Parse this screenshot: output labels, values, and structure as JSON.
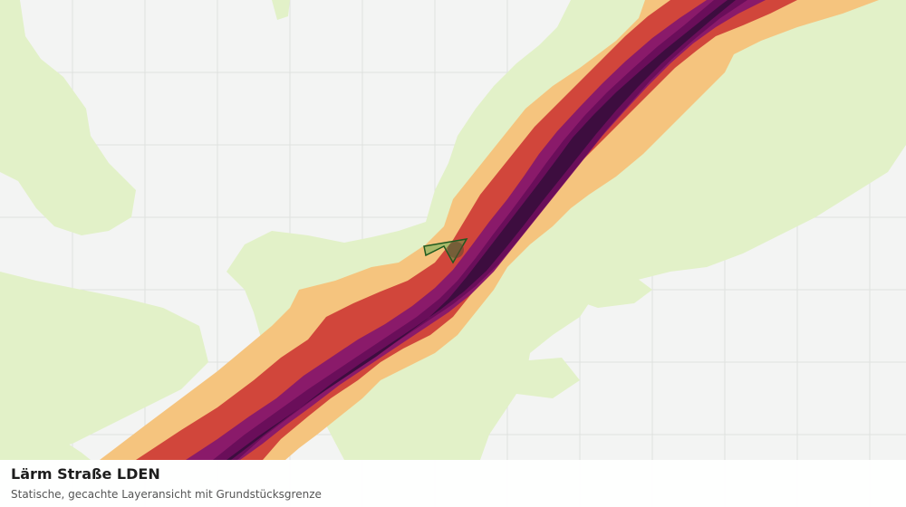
{
  "caption": {
    "title": "Lärm Straße LDEN",
    "subtitle": "Statische, gecachte Layeransicht mit Grundstücksgrenze"
  },
  "colors": {
    "background": "#f3f4f3",
    "grid": "#dfe2df",
    "green_area": "#e2f1c8",
    "noise_band_1": "#f5c47e",
    "noise_band_2": "#d1463b",
    "noise_band_3": "#8a1a6a",
    "noise_band_4": "#6a0e5a",
    "noise_band_5": "#3d0d3f",
    "parcel_fill": "#4caf50",
    "parcel_stroke": "#1f5a1f"
  },
  "layers": [
    "grid",
    "green-areas",
    "noise-bands",
    "parcel-boundary"
  ]
}
